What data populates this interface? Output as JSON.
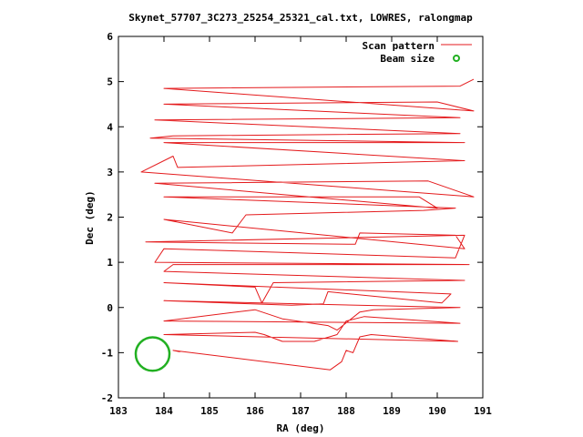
{
  "chart_data": {
    "type": "line",
    "title": "Skynet_57707_3C273_25254_25321_cal.txt, LOWRES, ralongmap",
    "xlabel": "RA (deg)",
    "ylabel": "Dec (deg)",
    "xlim": [
      183,
      191
    ],
    "ylim": [
      -2,
      6
    ],
    "xticks": [
      "183",
      "184",
      "185",
      "186",
      "187",
      "188",
      "189",
      "190",
      "191"
    ],
    "yticks": [
      "-2",
      "-1",
      "0",
      "1",
      "2",
      "3",
      "4",
      "5",
      "6"
    ],
    "grid": false,
    "legend_position": "top-right",
    "colors": {
      "scan": "#e41a1c",
      "beam": "#22b022"
    },
    "series": [
      {
        "name": "Scan pattern",
        "type": "line",
        "points": [
          [
            184.35,
            -0.98
          ],
          [
            184.2,
            -0.95
          ],
          [
            187.65,
            -1.38
          ],
          [
            187.9,
            -1.2
          ],
          [
            188.0,
            -0.95
          ],
          [
            188.15,
            -1.0
          ],
          [
            188.3,
            -0.65
          ],
          [
            188.55,
            -0.6
          ],
          [
            190.45,
            -0.75
          ],
          [
            190.45,
            -0.75
          ],
          [
            184.0,
            -0.6
          ],
          [
            186.0,
            -0.55
          ],
          [
            186.2,
            -0.6
          ],
          [
            186.6,
            -0.75
          ],
          [
            187.3,
            -0.75
          ],
          [
            187.8,
            -0.6
          ],
          [
            188.0,
            -0.3
          ],
          [
            188.4,
            -0.2
          ],
          [
            190.5,
            -0.35
          ],
          [
            190.5,
            -0.35
          ],
          [
            184.0,
            -0.3
          ],
          [
            186.0,
            -0.05
          ],
          [
            186.6,
            -0.25
          ],
          [
            187.6,
            -0.4
          ],
          [
            187.8,
            -0.5
          ],
          [
            188.3,
            -0.1
          ],
          [
            188.6,
            -0.05
          ],
          [
            190.5,
            0.0
          ],
          [
            190.5,
            0.0
          ],
          [
            184.0,
            0.15
          ],
          [
            186.8,
            0.05
          ],
          [
            187.5,
            0.08
          ],
          [
            187.6,
            0.35
          ],
          [
            190.1,
            0.1
          ],
          [
            190.3,
            0.3
          ],
          [
            190.3,
            0.3
          ],
          [
            184.0,
            0.55
          ],
          [
            186.0,
            0.45
          ],
          [
            186.15,
            0.1
          ],
          [
            186.4,
            0.55
          ],
          [
            190.6,
            0.6
          ],
          [
            190.6,
            0.6
          ],
          [
            184.0,
            0.8
          ],
          [
            184.2,
            0.95
          ],
          [
            190.7,
            0.95
          ],
          [
            190.7,
            0.95
          ],
          [
            183.8,
            1.0
          ],
          [
            184.0,
            1.3
          ],
          [
            190.4,
            1.1
          ],
          [
            190.6,
            1.6
          ],
          [
            190.6,
            1.6
          ],
          [
            183.6,
            1.45
          ],
          [
            188.2,
            1.4
          ],
          [
            188.3,
            1.65
          ],
          [
            190.4,
            1.6
          ],
          [
            190.6,
            1.3
          ],
          [
            190.6,
            1.3
          ],
          [
            184.0,
            1.95
          ],
          [
            185.5,
            1.65
          ],
          [
            185.8,
            2.05
          ],
          [
            189.7,
            2.15
          ],
          [
            190.4,
            2.2
          ],
          [
            190.4,
            2.2
          ],
          [
            184.0,
            2.45
          ],
          [
            189.6,
            2.45
          ],
          [
            190.0,
            2.2
          ],
          [
            190.0,
            2.2
          ],
          [
            183.8,
            2.75
          ],
          [
            189.8,
            2.8
          ],
          [
            190.8,
            2.45
          ],
          [
            190.8,
            2.45
          ],
          [
            183.5,
            3.0
          ],
          [
            184.2,
            3.35
          ],
          [
            184.3,
            3.1
          ],
          [
            190.6,
            3.25
          ],
          [
            190.6,
            3.25
          ],
          [
            184.0,
            3.65
          ],
          [
            190.6,
            3.65
          ],
          [
            190.6,
            3.65
          ],
          [
            183.7,
            3.75
          ],
          [
            184.2,
            3.8
          ],
          [
            190.5,
            3.85
          ],
          [
            190.5,
            3.85
          ],
          [
            183.8,
            4.15
          ],
          [
            190.5,
            4.2
          ],
          [
            190.5,
            4.2
          ],
          [
            184.0,
            4.5
          ],
          [
            190.0,
            4.55
          ],
          [
            190.8,
            4.35
          ],
          [
            190.8,
            4.35
          ],
          [
            184.0,
            4.85
          ],
          [
            190.5,
            4.9
          ],
          [
            190.8,
            5.05
          ]
        ]
      },
      {
        "name": "Beam size",
        "type": "circle",
        "center": [
          183.75,
          -1.03
        ],
        "radius_deg": 0.37
      }
    ]
  }
}
